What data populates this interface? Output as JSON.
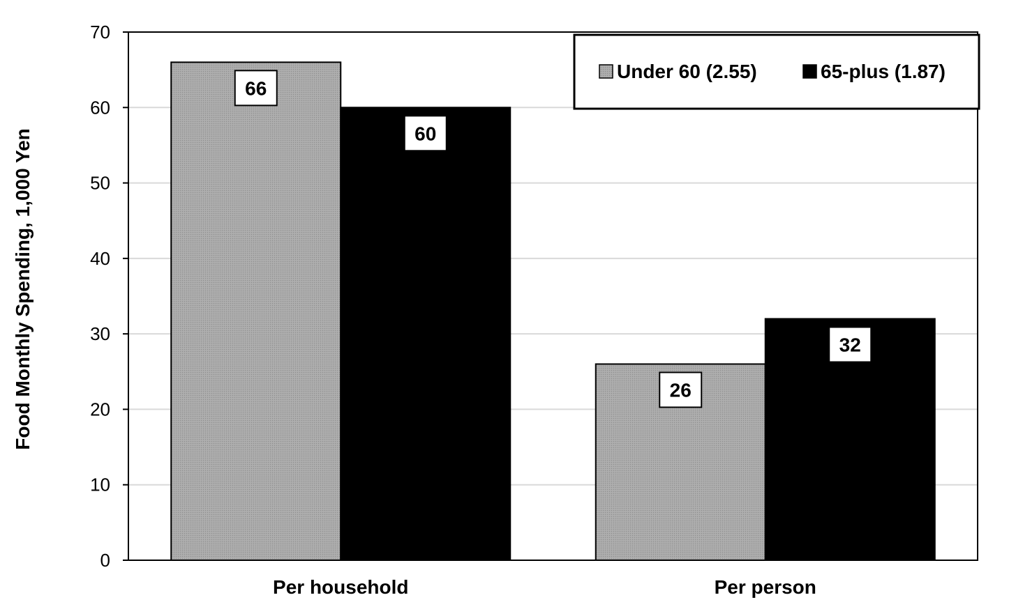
{
  "chart_data": {
    "type": "bar",
    "categories": [
      "Per household",
      "Per person"
    ],
    "series": [
      {
        "name": "Under 60 (2.55)",
        "values": [
          66,
          26
        ],
        "color": "#a6a6a6"
      },
      {
        "name": "65-plus (1.87)",
        "values": [
          60,
          32
        ],
        "color": "#000000"
      }
    ],
    "data_labels": [
      [
        "66",
        "26"
      ],
      [
        "60",
        "32"
      ]
    ],
    "xlabel": "",
    "ylabel": "Food  Monthly Spending, 1,000 Yen",
    "ylim": [
      0,
      70
    ],
    "yticks": [
      0,
      10,
      20,
      30,
      40,
      50,
      60,
      70
    ],
    "ytick_labels": [
      "0",
      "10",
      "20",
      "30",
      "40",
      "50",
      "60",
      "70"
    ],
    "grid": true,
    "legend_position": "top-right"
  }
}
